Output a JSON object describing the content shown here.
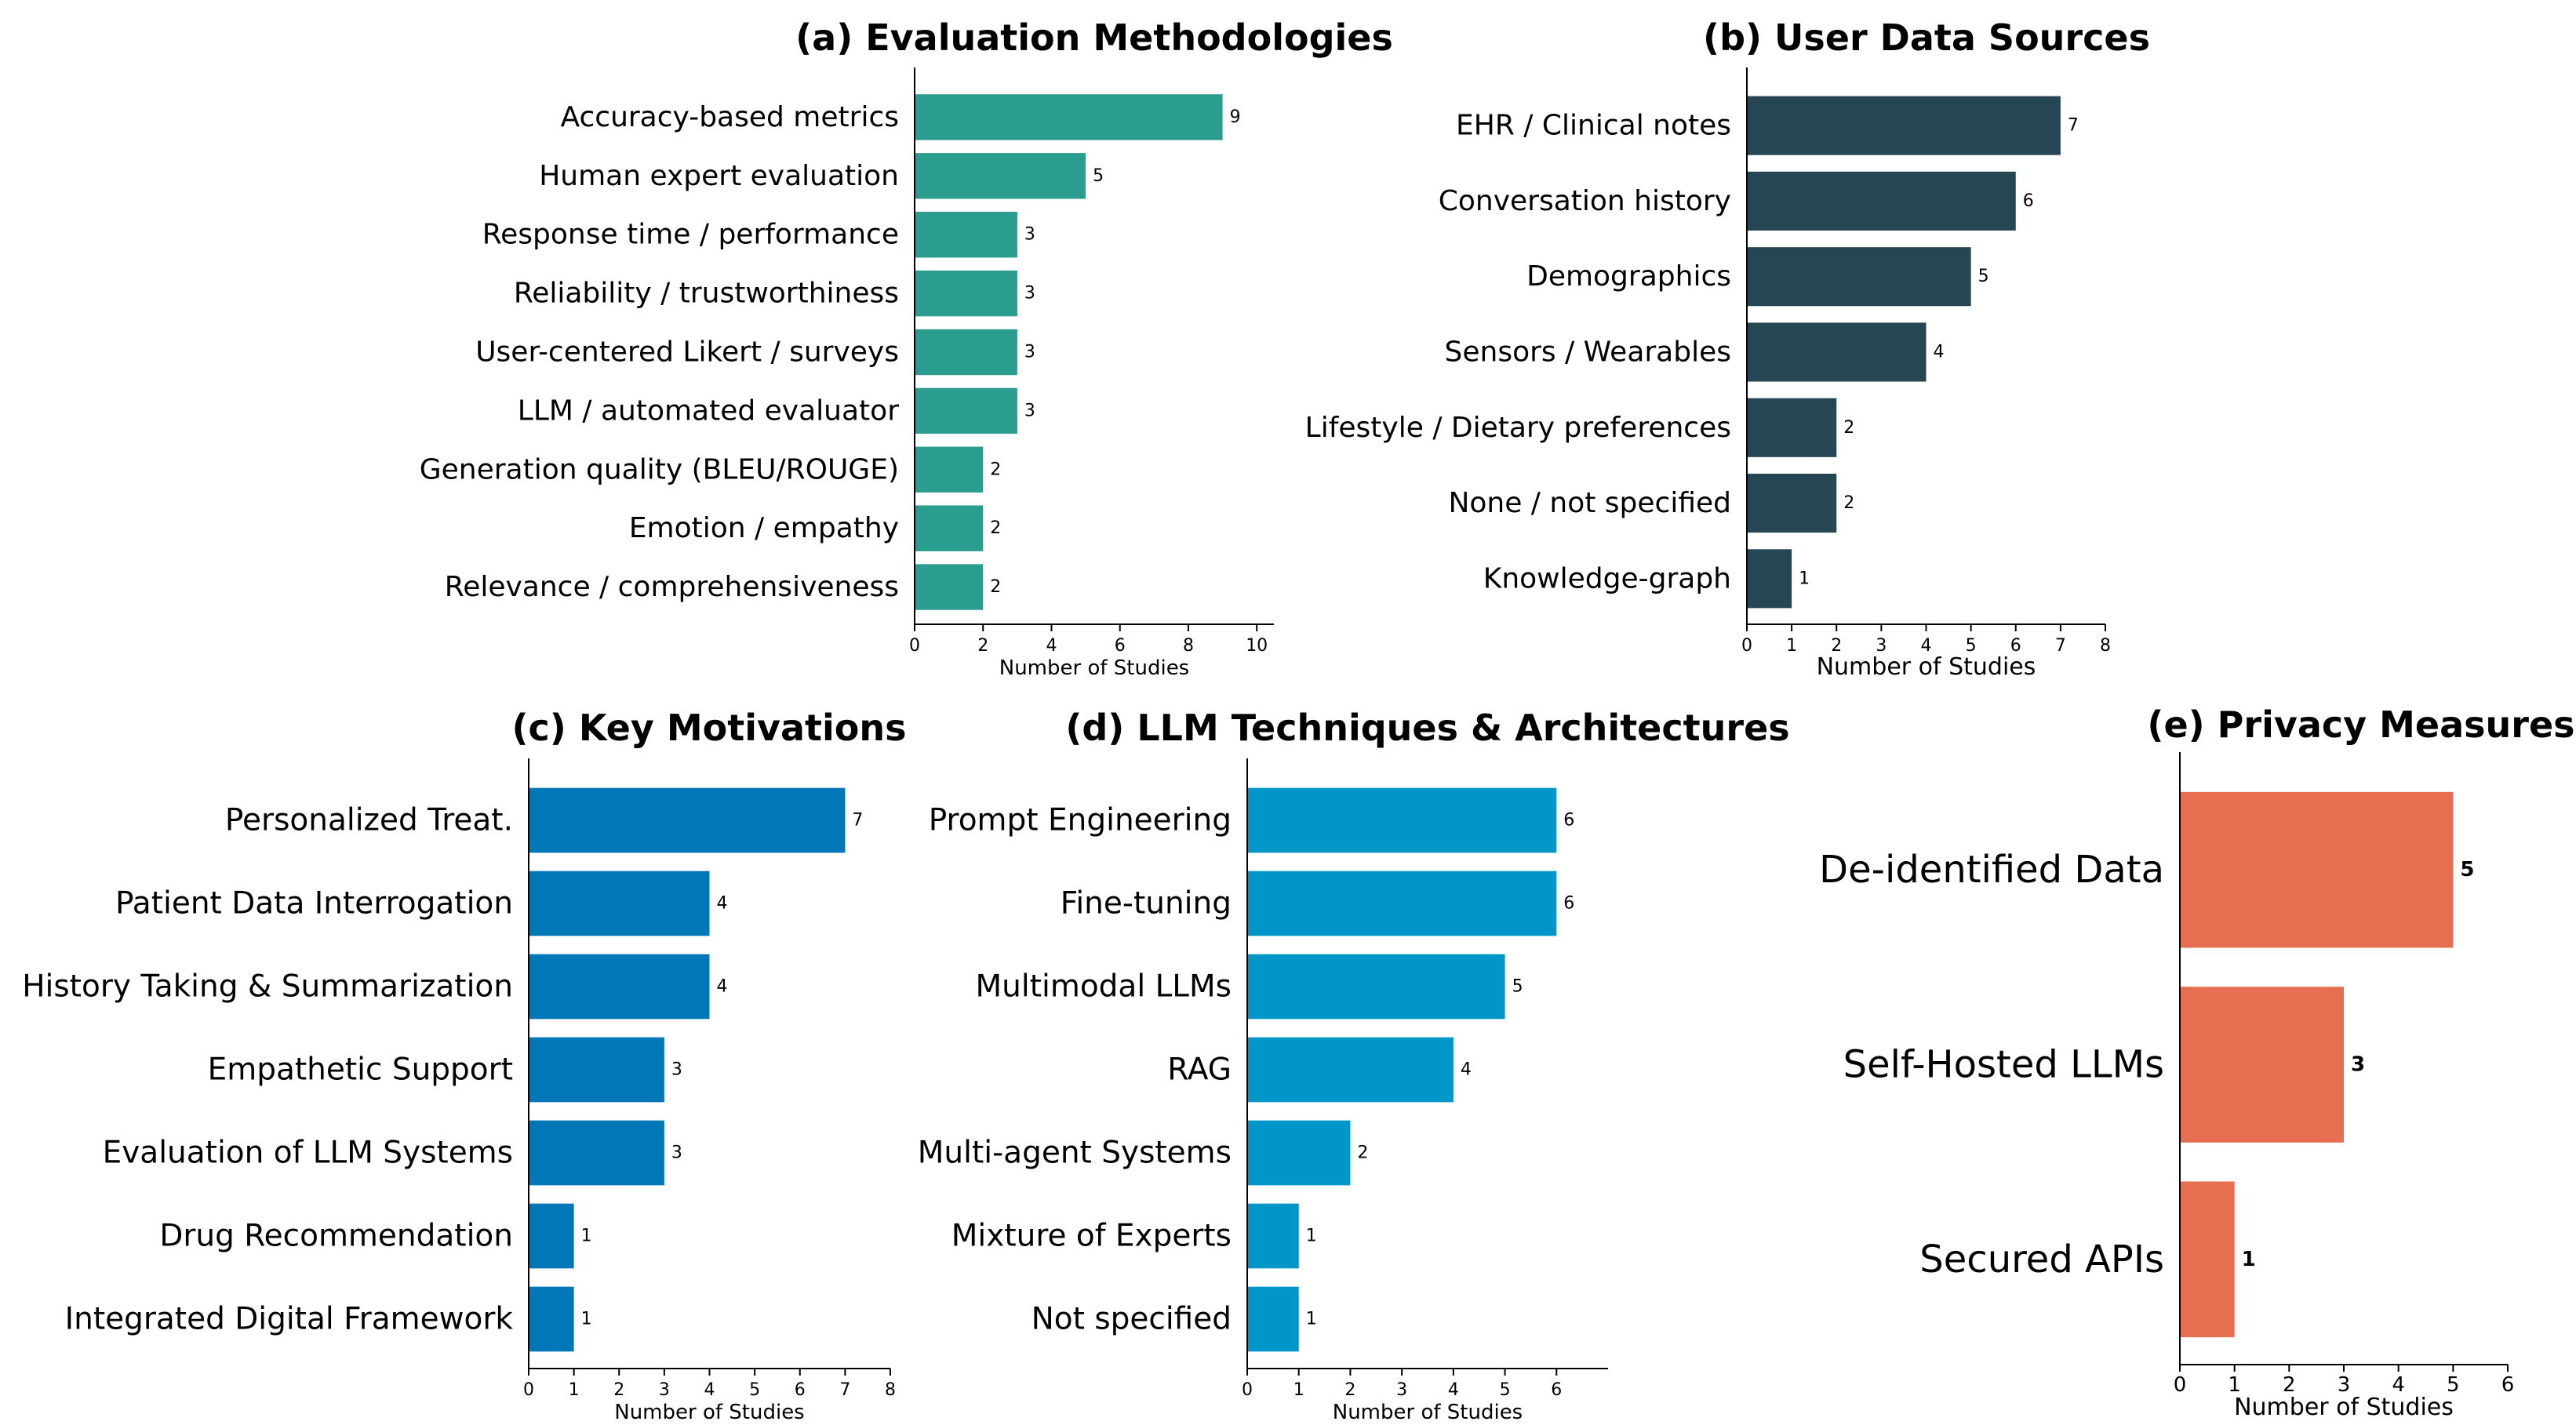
{
  "chart_data": [
    {
      "id": "a",
      "type": "bar",
      "orientation": "horizontal",
      "title": "(a) Evaluation Methodologies",
      "xlabel": "Number of Studies",
      "ylabel": "",
      "xlim": [
        0,
        10.5
      ],
      "xticks": [
        0,
        2,
        4,
        6,
        8,
        10
      ],
      "color": "#2a9d8f",
      "categories": [
        "Accuracy-based metrics",
        "Human expert evaluation",
        "Response time / performance",
        "Reliability / trustworthiness",
        "User-centered Likert / surveys",
        "LLM / automated evaluator",
        "Generation quality (BLEU/ROUGE)",
        "Emotion / empathy",
        "Relevance / comprehensiveness"
      ],
      "values": [
        9,
        5,
        3,
        3,
        3,
        3,
        2,
        2,
        2
      ],
      "grid": false
    },
    {
      "id": "b",
      "type": "bar",
      "orientation": "horizontal",
      "title": "(b) User Data Sources",
      "xlabel": "Number of Studies",
      "ylabel": "",
      "xlim": [
        0,
        8
      ],
      "xticks": [
        0,
        1,
        2,
        3,
        4,
        5,
        6,
        7,
        8
      ],
      "color": "#264653",
      "categories": [
        "EHR / Clinical notes",
        "Conversation history",
        "Demographics",
        "Sensors / Wearables",
        "Lifestyle / Dietary preferences",
        "None / not specified",
        "Knowledge-graph"
      ],
      "values": [
        7,
        6,
        5,
        4,
        2,
        2,
        1
      ],
      "grid": false
    },
    {
      "id": "c",
      "type": "bar",
      "orientation": "horizontal",
      "title": "(c) Key Motivations",
      "xlabel": "Number of Studies",
      "ylabel": "",
      "xlim": [
        0,
        8
      ],
      "xticks": [
        0,
        1,
        2,
        3,
        4,
        5,
        6,
        7,
        8
      ],
      "color": "#0077b6",
      "categories": [
        "Personalized Treat.",
        "Patient Data Interrogation",
        "History Taking & Summarization",
        "Empathetic Support",
        "Evaluation of LLM Systems",
        "Drug Recommendation",
        "Integrated Digital Framework"
      ],
      "values": [
        7,
        4,
        4,
        3,
        3,
        1,
        1
      ],
      "grid": false
    },
    {
      "id": "d",
      "type": "bar",
      "orientation": "horizontal",
      "title": "(d) LLM Techniques & Architectures",
      "xlabel": "Number of Studies",
      "ylabel": "",
      "xlim": [
        0,
        7
      ],
      "xticks": [
        0,
        1,
        2,
        3,
        4,
        5,
        6
      ],
      "color": "#0096c7",
      "categories": [
        "Prompt Engineering",
        "Fine-tuning",
        "Multimodal LLMs",
        "RAG",
        "Multi-agent Systems",
        "Mixture of Experts",
        "Not specified"
      ],
      "values": [
        6,
        6,
        5,
        4,
        2,
        1,
        1
      ],
      "grid": false
    },
    {
      "id": "e",
      "type": "bar",
      "orientation": "horizontal",
      "title": "(e) Privacy Measures",
      "xlabel": "Number of Studies",
      "ylabel": "",
      "xlim": [
        0,
        6
      ],
      "xticks": [
        0,
        1,
        2,
        3,
        4,
        5,
        6
      ],
      "color": "#e76f51",
      "categories": [
        "De-identified Data",
        "Self-Hosted LLMs",
        "Secured APIs"
      ],
      "values": [
        5,
        3,
        1
      ],
      "value_labels_bold": true,
      "grid": false
    }
  ]
}
